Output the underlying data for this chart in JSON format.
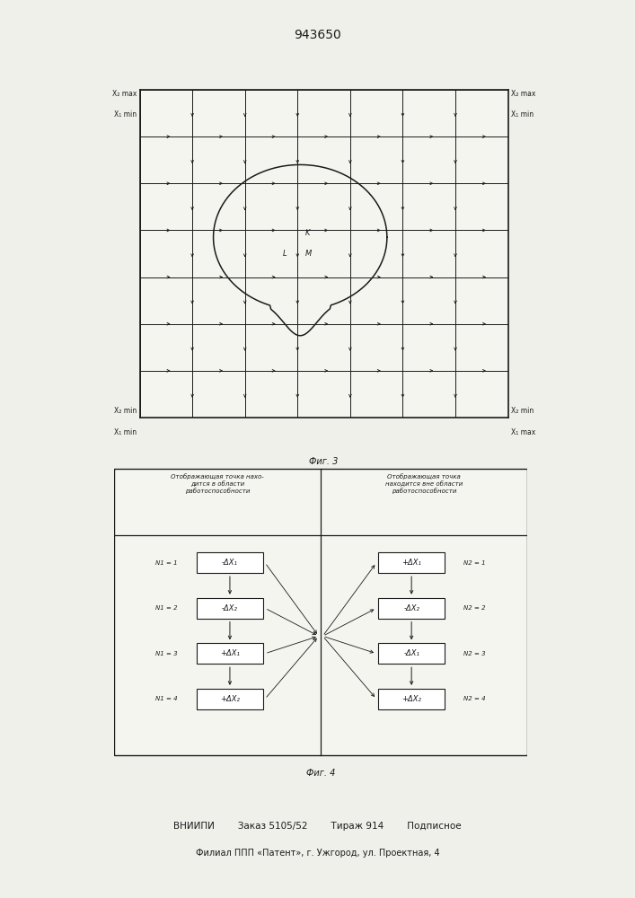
{
  "title": "943650",
  "fig3_caption": "Фиг. 3",
  "fig4_caption": "Фиг. 4",
  "fig3_corner_labels": {
    "top_left_line1": "X₂ max",
    "top_left_line2": "X₁ min",
    "top_right_line1": "X₂ max",
    "top_right_line2": "X₁ min",
    "bottom_left_line1": "X₂ min",
    "bottom_left_line2": "X₁ min",
    "bottom_right_line1": "X₂ min",
    "bottom_right_line2": "X₁ max"
  },
  "grid_n": 7,
  "blob_label_L": "L",
  "blob_label_M": "M",
  "blob_label_K": "K",
  "fig4_header_left": "Отображающая точка нахо-\nдится в области\nработоспособности",
  "fig4_header_right": "Отображающая точка\nнаходится вне области\nработоспособности",
  "fig4_left_boxes": [
    "-ΔX₁",
    "-ΔX₂",
    "+ΔX₁",
    "+ΔX₂"
  ],
  "fig4_right_boxes": [
    "+ΔX₁",
    "-ΔX₂",
    "-ΔX₁",
    "+ΔX₂"
  ],
  "fig4_left_labels": [
    "N1 = 1",
    "N1 = 2",
    "N1 = 3",
    "N1 = 4"
  ],
  "fig4_right_labels": [
    "N2 = 1",
    "N2 = 2",
    "N2 = 3",
    "N2 = 4"
  ],
  "footer_line1": "ВНИИПИ        Заказ 5105/52        Тираж 914        Подписное",
  "footer_line2": "Филиал ППП «Патент», г. Ужгород, ул. Проектная, 4",
  "background": "#f5f5f0",
  "line_color": "#1a1a1a"
}
